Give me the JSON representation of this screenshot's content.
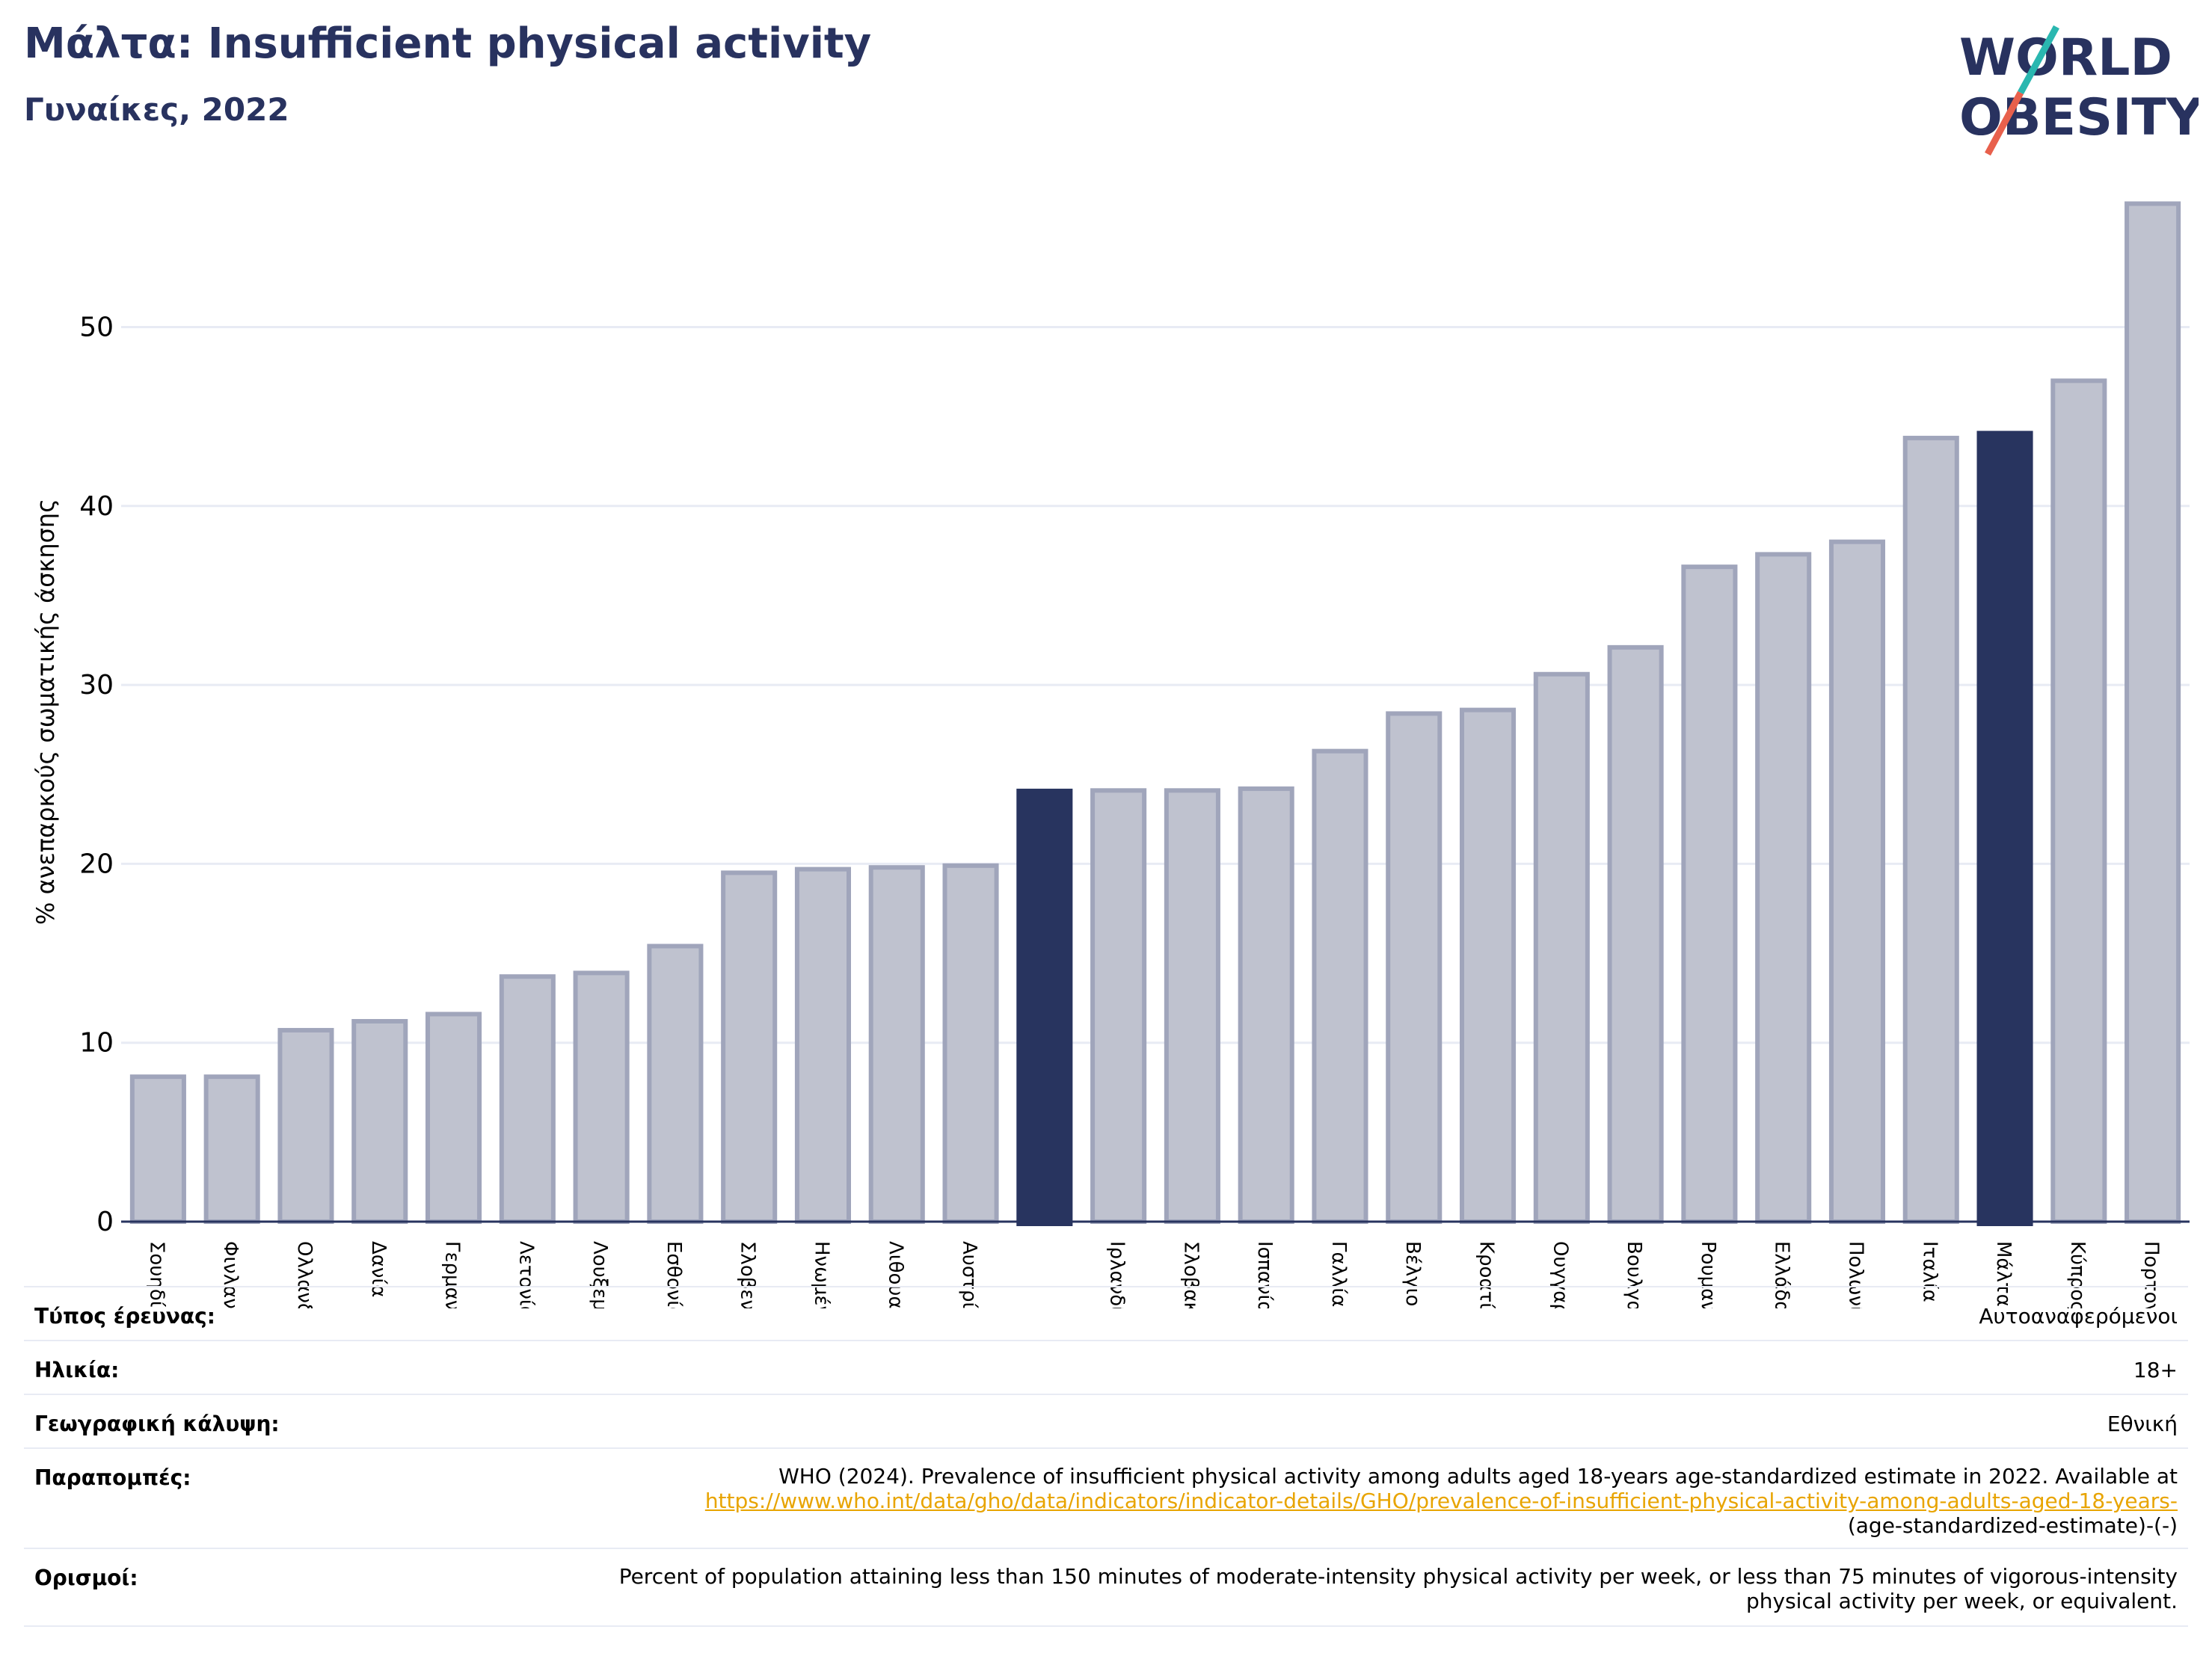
{
  "header": {
    "title": "Μάλτα: Insufficient physical activity",
    "subtitle": "Γυναίκες, 2022"
  },
  "logo": {
    "line1": "WORLD",
    "line2": "OBESITY",
    "accent_colors": [
      "#2ab7b0",
      "#e8604c"
    ]
  },
  "colors": {
    "highlight": "#28345f",
    "bar_fill": "#bfc2cf",
    "bar_edge": "#a0a5bb",
    "grid": "#e8ebf4",
    "axis": "#28345f"
  },
  "chart_data": {
    "type": "bar",
    "ylabel": "% ανεπαρκούς σωματικής άσκησης",
    "ylim": [
      0,
      57
    ],
    "yticks": [
      0,
      10,
      20,
      30,
      40,
      50
    ],
    "categories": [
      "Σουηδία",
      "Φινλανδία",
      "Ολλανδία",
      "Δανία",
      "Γερμανία",
      "Λετονία",
      "Λουξεμβούργο",
      "Εσθονία",
      "Σλοβενία",
      "Ηνωμένο Βασίλειο",
      "Λιθουανία",
      "Αυστρία",
      "",
      "Ιρλανδία",
      "Σλοβακία",
      "Ισπανία",
      "Γαλλία",
      "Βέλγιο",
      "Κροατία",
      "Ουγγαρία",
      "Βουλγαρία",
      "Ρουμανία",
      "Ελλάδα",
      "Πολωνία",
      "Ιταλία",
      "Μάλτα",
      "Κύπρος",
      "Πορτογαλία"
    ],
    "values": [
      8.1,
      8.1,
      10.7,
      11.2,
      11.6,
      13.7,
      13.9,
      15.4,
      19.5,
      19.7,
      19.8,
      19.9,
      24.2,
      24.1,
      24.1,
      24.2,
      26.3,
      28.4,
      28.6,
      30.6,
      32.1,
      36.6,
      37.3,
      38.0,
      43.8,
      44.2,
      47.0,
      56.9
    ],
    "highlight": [
      12,
      25
    ],
    "grid": true
  },
  "info": {
    "survey_type_label": "Τύπος έρευνας:",
    "survey_type_value": "Αυτοαναφερόμενοι",
    "age_label": "Ηλικία:",
    "age_value": "18+",
    "coverage_label": "Γεωγραφική κάλυψη:",
    "coverage_value": "Εθνική",
    "references_label": "Παραπομπές:",
    "references_text": "WHO (2024). Prevalence of insufficient physical activity among adults aged 18-years age-standardized estimate in 2022. Available at",
    "references_link": "https://www.who.int/data/gho/data/indicators/indicator-details/GHO/prevalence-of-insufficient-physical-activity-among-adults-aged-18-years-",
    "references_tail": "(age-standardized-estimate)-(-)",
    "definitions_label": "Ορισμοί:",
    "definitions_text": "Percent of population attaining less than 150 minutes of moderate-intensity physical activity per week, or less than 75 minutes of vigorous-intensity physical activity per week, or equivalent."
  }
}
